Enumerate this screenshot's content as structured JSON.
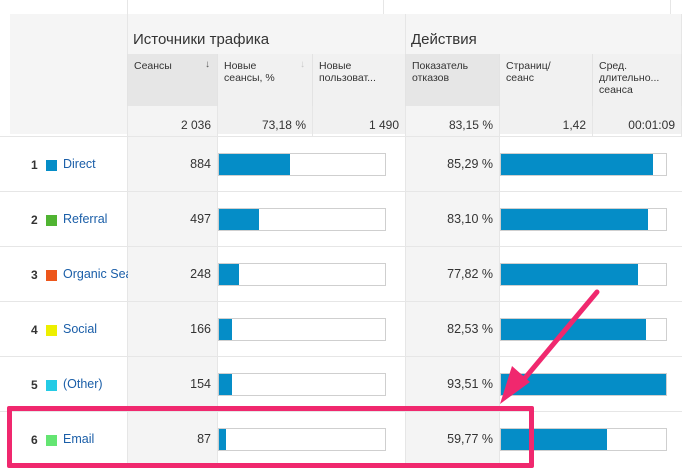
{
  "groups": {
    "traffic": "Источники трафика",
    "actions": "Действия"
  },
  "columns": {
    "sessions": "Сеансы",
    "new_sessions": "Новые сеансы, %",
    "new_users": "Новые пользоват...",
    "bounce": "Показатель отказов",
    "pages": "Страниц/ сеанс",
    "duration": "Сред. длительно... сеанса"
  },
  "sort_icon": "arrow-down-icon",
  "totals": {
    "sessions": "2 036",
    "new_sessions": "73,18 %",
    "new_users": "1 490",
    "bounce": "83,15 %",
    "pages": "1,42",
    "duration": "00:01:09"
  },
  "rows": [
    {
      "index": "1",
      "source": "Direct",
      "color": "#058dc7",
      "sessions": "884",
      "new_sessions_fill": 0.43,
      "bounce": "85,29 %",
      "pages_fill": 0.92
    },
    {
      "index": "2",
      "source": "Referral",
      "color": "#50b432",
      "sessions": "497",
      "new_sessions_fill": 0.24,
      "bounce": "83,10 %",
      "pages_fill": 0.89
    },
    {
      "index": "3",
      "source": "Organic Search",
      "color": "#ed561b",
      "sessions": "248",
      "new_sessions_fill": 0.12,
      "bounce": "77,82 %",
      "pages_fill": 0.83
    },
    {
      "index": "4",
      "source": "Social",
      "color": "#edef00",
      "sessions": "166",
      "new_sessions_fill": 0.08,
      "bounce": "82,53 %",
      "pages_fill": 0.88
    },
    {
      "index": "5",
      "source": "(Other)",
      "color": "#24cbe5",
      "sessions": "154",
      "new_sessions_fill": 0.08,
      "bounce": "93,51 %",
      "pages_fill": 1.0
    },
    {
      "index": "6",
      "source": "Email",
      "color": "#64e572",
      "sessions": "87",
      "new_sessions_fill": 0.04,
      "bounce": "59,77 %",
      "pages_fill": 0.64
    }
  ],
  "annotation": {
    "color": "#f0286e"
  }
}
